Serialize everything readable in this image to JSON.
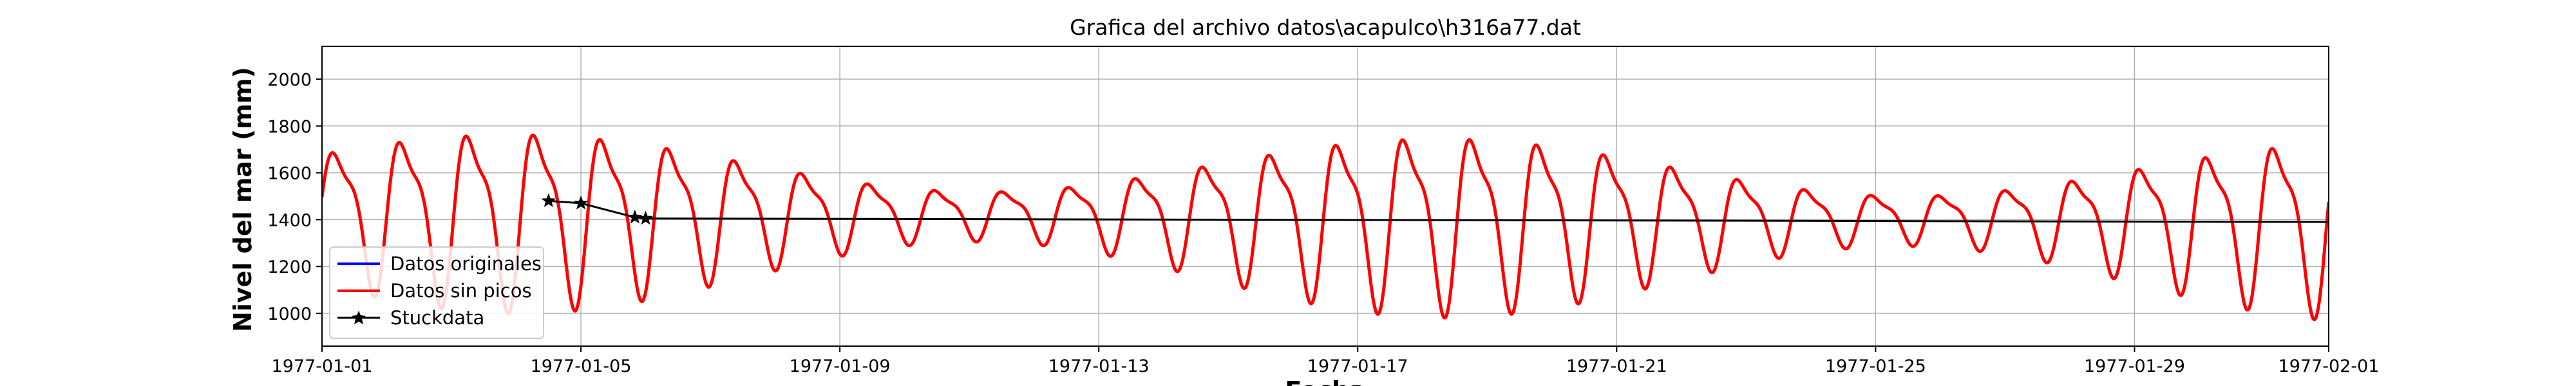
{
  "chart_data": {
    "type": "line",
    "title": "Grafica del archivo datos\\acapulco\\h316a77.dat",
    "xlabel": "Fecha",
    "ylabel": "Nivel del mar (mm)",
    "x_range": [
      "1977-01-01",
      "1977-02-01"
    ],
    "ylim": [
      860,
      2140
    ],
    "x_ticks": [
      "1977-01-01",
      "1977-01-05",
      "1977-01-09",
      "1977-01-13",
      "1977-01-17",
      "1977-01-21",
      "1977-01-25",
      "1977-01-29",
      "1977-02-01"
    ],
    "y_ticks": [
      1000,
      1200,
      1400,
      1600,
      1800,
      2000
    ],
    "grid": true,
    "legend_position": "lower-left",
    "series": [
      {
        "name": "Datos originales",
        "color": "#0000ff",
        "style": "line",
        "tide": {
          "start": "1977-01-01T00:00",
          "end": "1977-02-01T00:00",
          "mean_level_mm": 1440,
          "mean_level_end_mm": 1400,
          "amplitude_range_mm": [
            120,
            430
          ],
          "period_hours": 24.8
        }
      },
      {
        "name": "Datos sin picos",
        "color": "#ff0000",
        "style": "line",
        "tide": {
          "start": "1977-01-01T00:00",
          "end": "1977-02-01T00:00",
          "mean_level_mm": 1440,
          "mean_level_end_mm": 1400,
          "amplitude_range_mm": [
            120,
            430
          ],
          "period_hours": 24.8
        }
      },
      {
        "name": "Stuckdata",
        "color": "#000000",
        "style": "line-star",
        "points": [
          {
            "x": "1977-01-04T12:00",
            "y": 1480
          },
          {
            "x": "1977-01-05T00:00",
            "y": 1470
          },
          {
            "x": "1977-01-05T20:00",
            "y": 1410
          },
          {
            "x": "1977-01-06T00:00",
            "y": 1405
          },
          {
            "x": "1977-02-01T00:00",
            "y": 1390
          }
        ]
      }
    ]
  }
}
